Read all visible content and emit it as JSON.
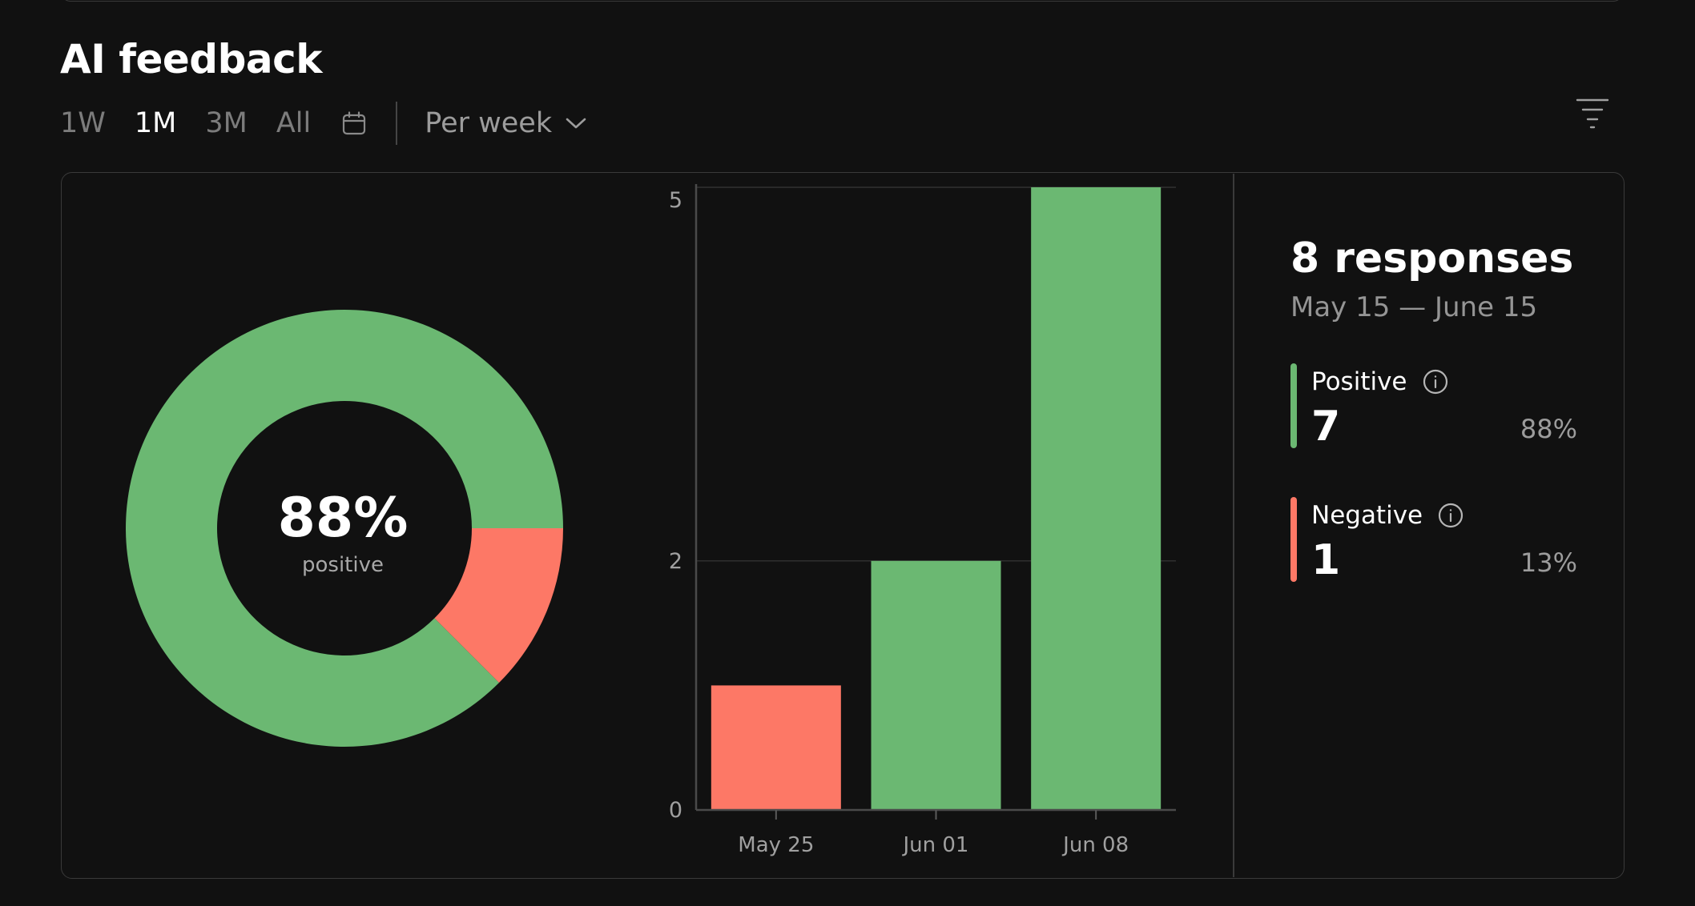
{
  "section": {
    "title": "AI feedback"
  },
  "range_tabs": [
    {
      "label": "1W",
      "active": false
    },
    {
      "label": "1M",
      "active": true
    },
    {
      "label": "3M",
      "active": false
    },
    {
      "label": "All",
      "active": false
    }
  ],
  "period_select": {
    "value": "Per week"
  },
  "colors": {
    "positive": "#6bb872",
    "negative": "#fd7866",
    "background": "#111111",
    "border": "#3a3a3a"
  },
  "donut": {
    "percent_label": "88%",
    "sub_label": "positive"
  },
  "summary": {
    "count_label": "8 responses",
    "date_range": "May 15 — June 15"
  },
  "legend": [
    {
      "name": "Positive",
      "count": "7",
      "percent": "88%",
      "color": "#6bb872"
    },
    {
      "name": "Negative",
      "count": "1",
      "percent": "13%",
      "color": "#fd7866"
    }
  ],
  "chart_data": [
    {
      "type": "pie",
      "title": "AI feedback",
      "donut": true,
      "center_label": "88%",
      "center_sublabel": "positive",
      "slices": [
        {
          "label": "Positive",
          "value": 7,
          "color": "#6bb872"
        },
        {
          "label": "Negative",
          "value": 1,
          "color": "#fd7866"
        }
      ]
    },
    {
      "type": "bar",
      "categories": [
        "May 25",
        "Jun 01",
        "Jun 08"
      ],
      "values": [
        1,
        2,
        5
      ],
      "bar_colors": [
        "#fd7866",
        "#6bb872",
        "#6bb872"
      ],
      "ylim": [
        0,
        5
      ],
      "yticks": [
        0,
        2,
        5
      ],
      "xlabel": "",
      "ylabel": "",
      "grid": true
    }
  ]
}
